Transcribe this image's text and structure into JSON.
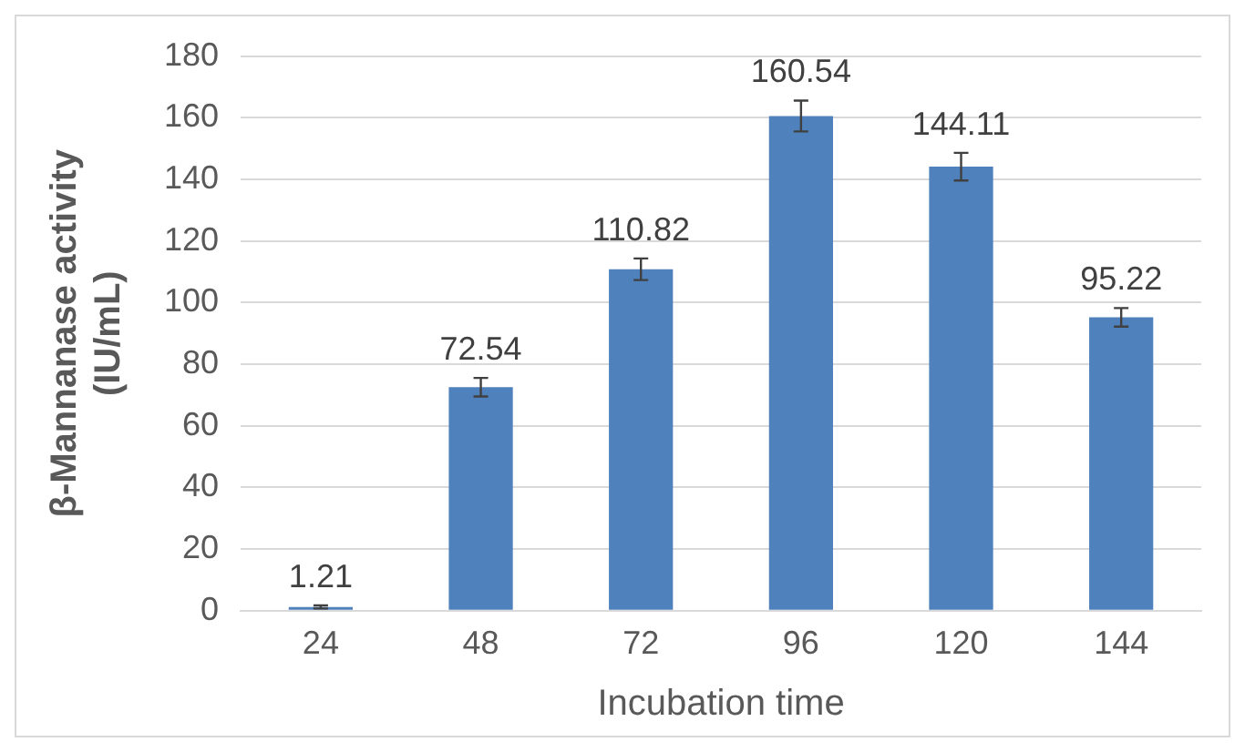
{
  "chart_data": {
    "type": "bar",
    "xlabel": "Incubation time",
    "ylabel": "β-Mannanase activity\n(IU/mL)",
    "categories": [
      "24",
      "48",
      "72",
      "96",
      "120",
      "144"
    ],
    "values": [
      1.21,
      72.54,
      110.82,
      160.54,
      144.11,
      95.22
    ],
    "errors": [
      0.5,
      3,
      3.5,
      5,
      4.5,
      3
    ],
    "color": "#4f81bd",
    "ylim": [
      0,
      180
    ],
    "yticks": [
      0,
      20,
      40,
      60,
      80,
      100,
      120,
      140,
      160,
      180
    ],
    "grid": "y",
    "data_labels": true
  }
}
